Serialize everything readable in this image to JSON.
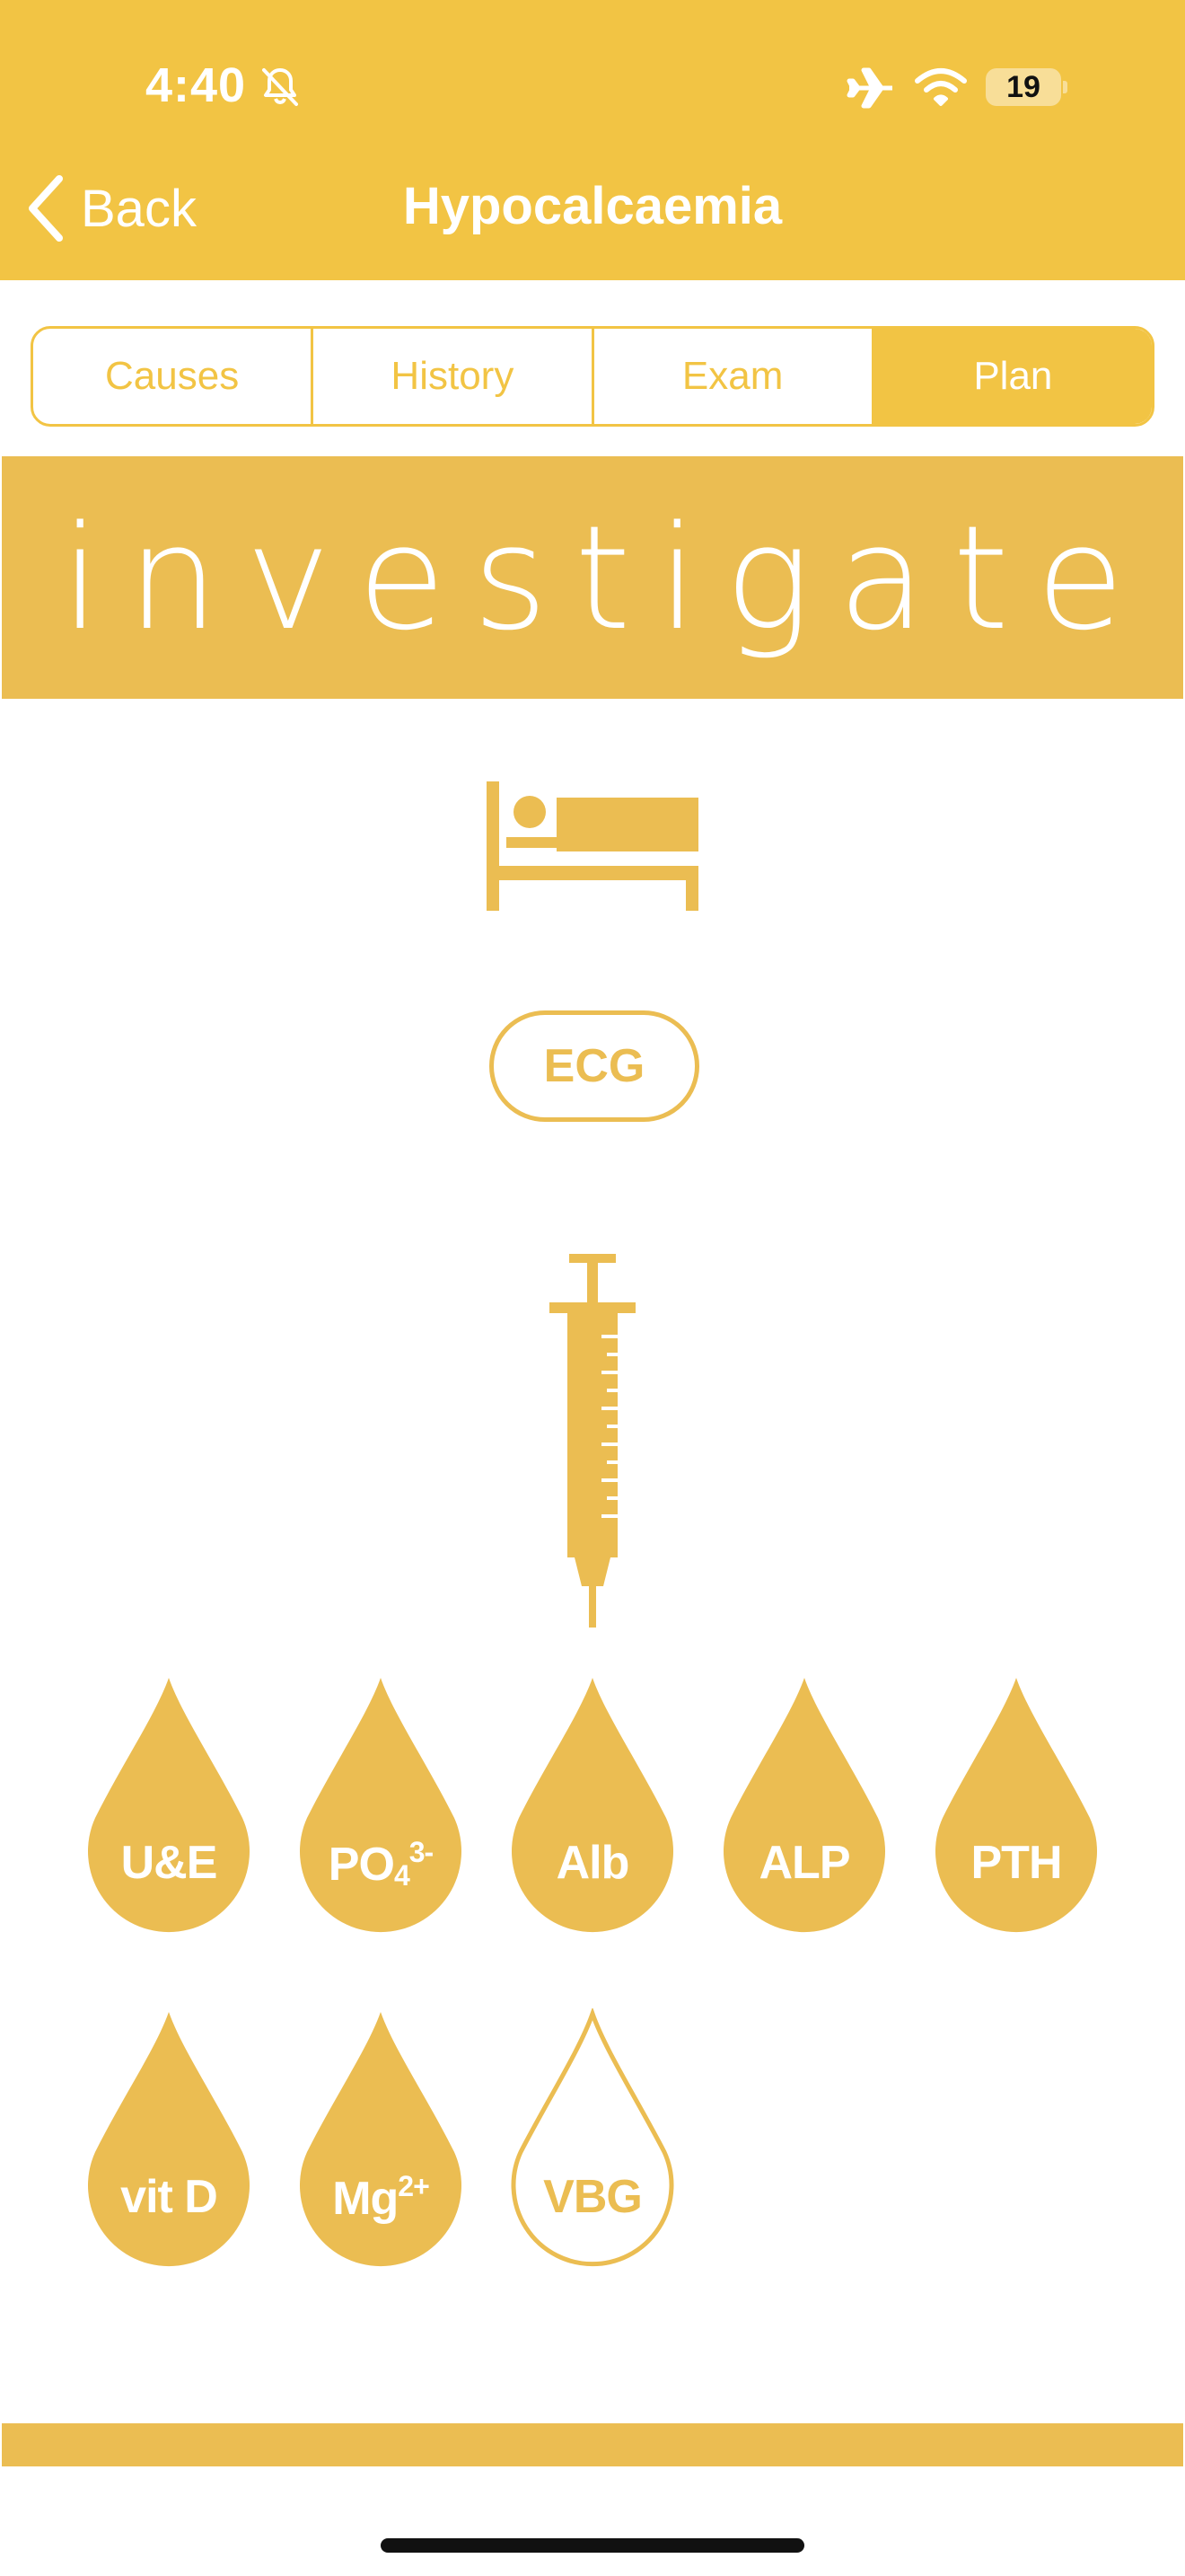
{
  "status_bar": {
    "time": "4:40",
    "battery": "19"
  },
  "nav": {
    "back_label": "Back",
    "title": "Hypocalcaemia"
  },
  "tabs": [
    {
      "label": "Causes",
      "active": false
    },
    {
      "label": "History",
      "active": false
    },
    {
      "label": "Exam",
      "active": false
    },
    {
      "label": "Plan",
      "active": true
    }
  ],
  "banner": {
    "text": "investigate"
  },
  "ecg": {
    "label": "ECG"
  },
  "blood_tests": [
    {
      "label": "U&E",
      "filled": true
    },
    {
      "label": "PO",
      "sub": "4",
      "sup": "3-",
      "filled": true
    },
    {
      "label": "Alb",
      "filled": true
    },
    {
      "label": "ALP",
      "filled": true
    },
    {
      "label": "PTH",
      "filled": true
    },
    {
      "label": "vit D",
      "filled": true
    },
    {
      "label": "Mg",
      "sup": "2+",
      "filled": true
    },
    {
      "label": "VBG",
      "filled": false
    }
  ],
  "colors": {
    "header": "#f2c444",
    "accent": "#ebbd52",
    "text_on_accent": "#ffffff"
  },
  "icons": [
    "bell-slash-icon",
    "airplane-icon",
    "wifi-icon",
    "chevron-left-icon",
    "bed-icon",
    "syringe-icon",
    "blood-drop-icon"
  ]
}
